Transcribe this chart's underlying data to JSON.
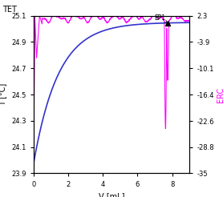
{
  "title": "TET",
  "xlabel": "V [mL]",
  "ylabel_left": "T [°C]",
  "ylabel_right": "ERC",
  "xlim": [
    0,
    9
  ],
  "ylim_left": [
    23.9,
    25.1
  ],
  "ylim_right": [
    -35,
    2.3
  ],
  "yticks_left": [
    23.9,
    24.1,
    24.3,
    24.5,
    24.7,
    24.9,
    25.1
  ],
  "yticks_right": [
    2.3,
    -3.9,
    -10.1,
    -16.4,
    -22.6,
    -28.8,
    -35
  ],
  "xticks": [
    0,
    2,
    4,
    6,
    8
  ],
  "bg_color": "#ffffff",
  "line_color_temp": "#3333cc",
  "line_color_erc": "#ff00ff",
  "ep1_x": 7.75,
  "ep1_erc": 2.05
}
